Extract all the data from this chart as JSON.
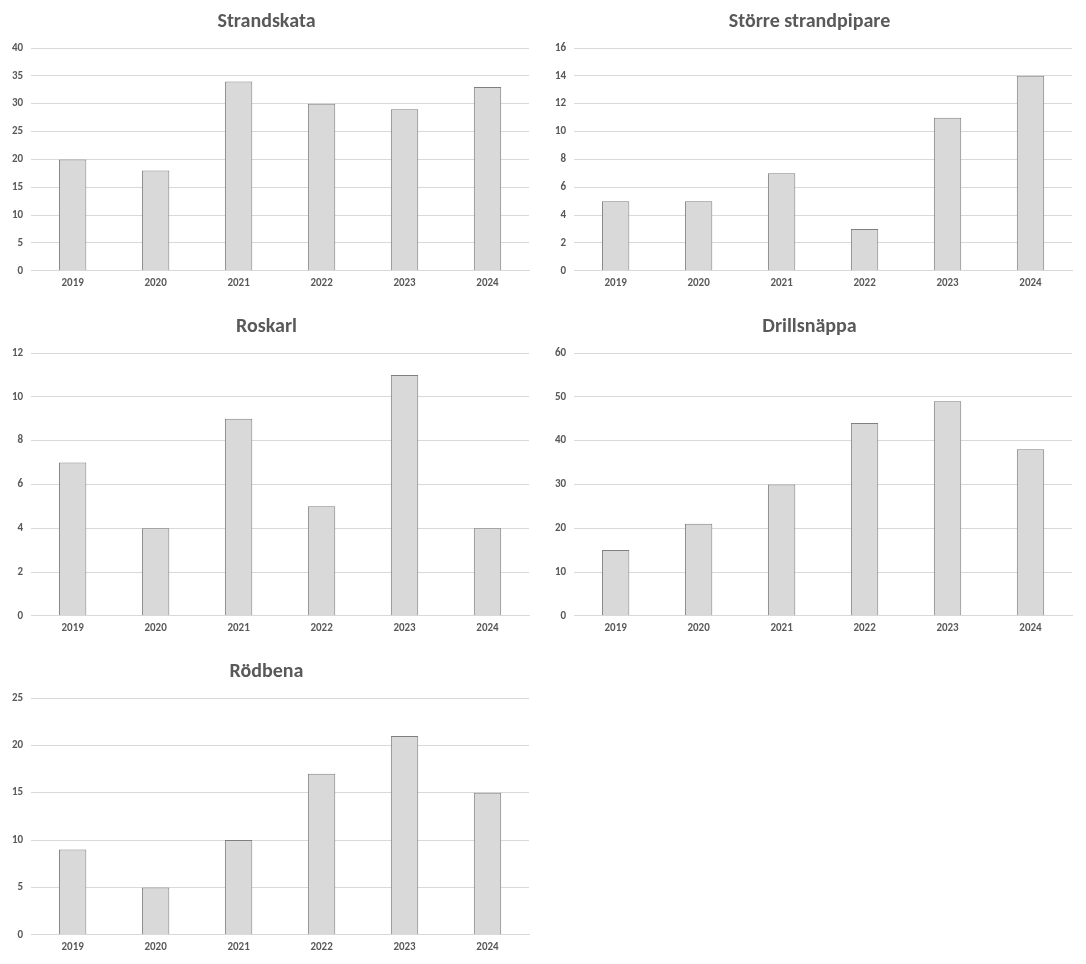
{
  "chart_data": [
    {
      "type": "bar",
      "title": "Strandskata",
      "categories": [
        "2019",
        "2020",
        "2021",
        "2022",
        "2023",
        "2024"
      ],
      "values": [
        20,
        18,
        34,
        30,
        29,
        33
      ],
      "color": "#d9d9d9",
      "ylim": [
        0,
        40
      ],
      "yticks": [
        0,
        5,
        10,
        15,
        20,
        25,
        30,
        35,
        40
      ],
      "grid": "y",
      "legend": false
    },
    {
      "type": "bar",
      "title": "Större strandpipare",
      "categories": [
        "2019",
        "2020",
        "2021",
        "2022",
        "2023",
        "2024"
      ],
      "values": [
        5,
        5,
        7,
        3,
        11,
        14
      ],
      "color": "#d9d9d9",
      "ylim": [
        0,
        16
      ],
      "yticks": [
        0,
        2,
        4,
        6,
        8,
        10,
        12,
        14,
        16
      ],
      "grid": "y",
      "legend": false
    },
    {
      "type": "bar",
      "title": "Roskarl",
      "categories": [
        "2019",
        "2020",
        "2021",
        "2022",
        "2023",
        "2024"
      ],
      "values": [
        7,
        4,
        9,
        5,
        11,
        4
      ],
      "color": "#d9d9d9",
      "ylim": [
        0,
        12
      ],
      "yticks": [
        0,
        2,
        4,
        6,
        8,
        10,
        12
      ],
      "grid": "y",
      "legend": false
    },
    {
      "type": "bar",
      "title": "Drillsnäppa",
      "categories": [
        "2019",
        "2020",
        "2021",
        "2022",
        "2023",
        "2024"
      ],
      "values": [
        15,
        21,
        30,
        44,
        49,
        38
      ],
      "color": "#d9d9d9",
      "ylim": [
        0,
        60
      ],
      "yticks": [
        0,
        10,
        20,
        30,
        40,
        50,
        60
      ],
      "grid": "y",
      "legend": false
    },
    {
      "type": "bar",
      "title": "Rödbena",
      "categories": [
        "2019",
        "2020",
        "2021",
        "2022",
        "2023",
        "2024"
      ],
      "values": [
        9,
        5,
        10,
        17,
        21,
        15
      ],
      "color": "#d9d9d9",
      "ylim": [
        0,
        25
      ],
      "yticks": [
        0,
        5,
        10,
        15,
        20,
        25
      ],
      "grid": "y",
      "legend": false
    }
  ]
}
